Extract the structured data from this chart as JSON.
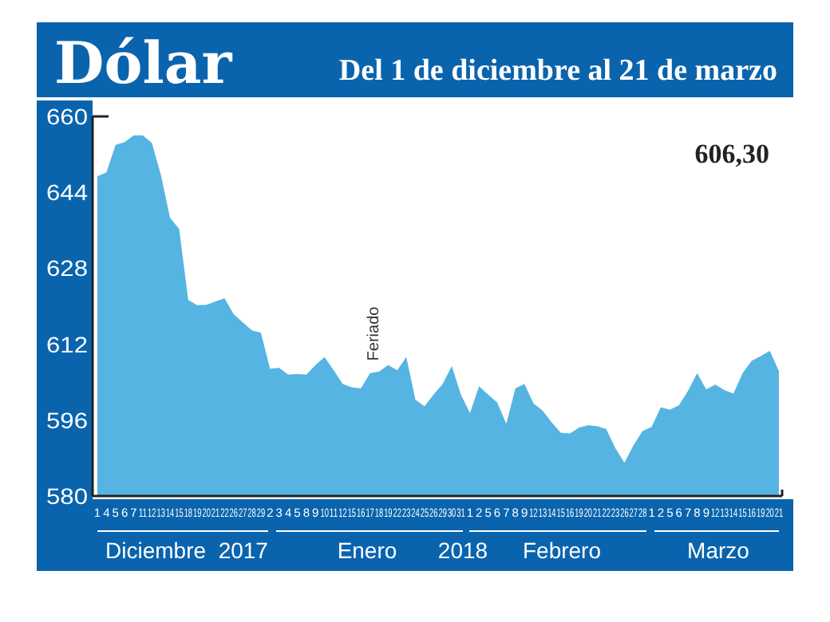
{
  "chart_data": {
    "type": "area",
    "title": "Dólar",
    "subtitle": "Del 1 de diciembre al 21 de marzo",
    "categories": [
      "1",
      "4",
      "5",
      "6",
      "7",
      "11",
      "12",
      "13",
      "14",
      "15",
      "18",
      "19",
      "20",
      "21",
      "22",
      "26",
      "27",
      "28",
      "29",
      "2",
      "3",
      "4",
      "5",
      "8",
      "9",
      "10",
      "11",
      "12",
      "15",
      "16",
      "17",
      "18",
      "19",
      "22",
      "23",
      "24",
      "25",
      "26",
      "29",
      "30",
      "31",
      "1",
      "2",
      "5",
      "6",
      "7",
      "8",
      "9",
      "12",
      "13",
      "14",
      "15",
      "16",
      "19",
      "20",
      "21",
      "22",
      "23",
      "26",
      "27",
      "28",
      "1",
      "2",
      "5",
      "6",
      "7",
      "8",
      "9",
      "12",
      "13",
      "14",
      "15",
      "16",
      "19",
      "20",
      "21"
    ],
    "series": [
      {
        "color": "#56b4e2",
        "values": [
          647.4,
          648.2,
          654,
          654.6,
          656,
          656,
          654.4,
          647.6,
          638.6,
          636.3,
          621.3,
          620.2,
          620.3,
          621,
          621.7,
          618.3,
          616.6,
          614.9,
          614.4,
          606.8,
          607,
          605.6,
          605.7,
          605.6,
          607.6,
          609.3,
          606.5,
          603.6,
          602.9,
          602.7,
          605.9,
          606.2,
          607.6,
          606.5,
          609.3,
          600.3,
          598.9,
          601.4,
          603.6,
          607.4,
          601.4,
          597.5,
          603.1,
          601.4,
          599.7,
          595.2,
          602.7,
          603.6,
          599.5,
          598,
          595.5,
          593.3,
          593.2,
          594.4,
          594.9,
          594.7,
          594.1,
          590.1,
          587,
          590.7,
          593.7,
          594.6,
          598.7,
          598.2,
          599.1,
          602.2,
          605.9,
          602.5,
          603.5,
          602.3,
          601.6,
          605.9,
          608.5,
          609.5,
          610.6,
          606.3
        ]
      }
    ],
    "ylim": [
      580,
      660
    ],
    "yticks": [
      580,
      596,
      612,
      628,
      644,
      660
    ],
    "annotations": [
      "606,30",
      "Feriado",
      "Diciembre  2017",
      "Enero",
      "2018",
      "Febrero",
      "Marzo"
    ]
  }
}
